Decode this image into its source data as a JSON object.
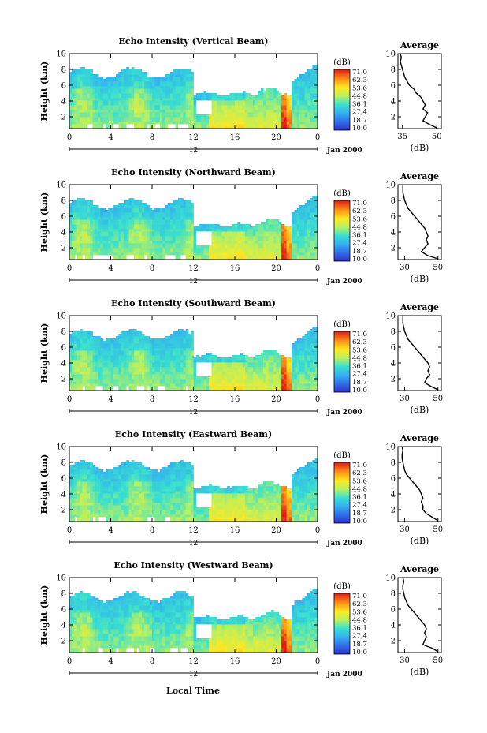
{
  "figure": {
    "xlabel": "Local Time",
    "date_label": "Jan 2000",
    "colorbar_unit": "(dB)",
    "colorbar_ticks": [
      "71.0",
      "62.3",
      "53.6",
      "44.8",
      "36.1",
      "27.4",
      "18.7",
      "10.0"
    ],
    "average_title": "Average",
    "average_xlabel": "(dB)"
  },
  "chart_data": [
    {
      "type": "heatmap",
      "title": "Echo Intensity (Vertical Beam)",
      "ylabel": "Height (km)",
      "x_ticks": [
        "0",
        "4",
        "8",
        "12",
        "16",
        "20",
        "0"
      ],
      "x_mid_label": "12",
      "y_ticks": [
        "2",
        "4",
        "6",
        "8",
        "10"
      ],
      "xlim": [
        0,
        24
      ],
      "ylim": [
        0.5,
        10
      ],
      "colorbar": {
        "label": "(dB)",
        "range": [
          10.0,
          71.0
        ]
      },
      "average_profile": {
        "title": "Average",
        "xlabel": "(dB)",
        "x_ticks": [
          "35",
          "50"
        ],
        "y_ticks": [
          "2",
          "4",
          "6",
          "8",
          "10"
        ],
        "xlim": [
          33,
          52
        ],
        "height_km": [
          0.6,
          1.0,
          1.5,
          2.0,
          2.5,
          3.0,
          3.5,
          4.0,
          4.5,
          5.0,
          5.5,
          6.0,
          6.5,
          7.0,
          7.5,
          8.0,
          8.5,
          9.0,
          9.5,
          10.0
        ],
        "db": [
          50,
          47,
          44,
          45,
          46,
          44,
          45,
          44,
          43,
          41,
          40,
          38,
          37,
          36,
          35.5,
          35,
          34.5,
          34,
          34.5,
          34
        ]
      }
    },
    {
      "type": "heatmap",
      "title": "Echo Intensity (Northward Beam)",
      "ylabel": "Height (km)",
      "x_ticks": [
        "0",
        "4",
        "8",
        "12",
        "16",
        "20",
        "0"
      ],
      "x_mid_label": "12",
      "y_ticks": [
        "2",
        "4",
        "6",
        "8",
        "10"
      ],
      "xlim": [
        0,
        24
      ],
      "ylim": [
        0.5,
        10
      ],
      "colorbar": {
        "label": "(dB)",
        "range": [
          10.0,
          71.0
        ]
      },
      "average_profile": {
        "title": "Average",
        "xlabel": "(dB)",
        "x_ticks": [
          "30",
          "50"
        ],
        "y_ticks": [
          "2",
          "4",
          "6",
          "8",
          "10"
        ],
        "xlim": [
          26,
          52
        ],
        "height_km": [
          0.6,
          1.0,
          1.5,
          2.0,
          2.5,
          3.0,
          3.5,
          4.0,
          4.5,
          5.0,
          5.5,
          6.0,
          6.5,
          7.0,
          7.5,
          8.0,
          8.5,
          9.0,
          9.5,
          10.0
        ],
        "db": [
          50,
          44,
          40,
          42,
          44,
          43,
          44,
          43,
          42,
          40,
          38,
          36,
          34,
          32,
          31,
          30,
          29.5,
          29,
          29,
          29
        ]
      }
    },
    {
      "type": "heatmap",
      "title": "Echo Intensity (Southward Beam)",
      "ylabel": "Height (km)",
      "x_ticks": [
        "0",
        "4",
        "8",
        "12",
        "16",
        "20",
        "0"
      ],
      "x_mid_label": "12",
      "y_ticks": [
        "2",
        "4",
        "6",
        "8",
        "10"
      ],
      "xlim": [
        0,
        24
      ],
      "ylim": [
        0.5,
        10
      ],
      "colorbar": {
        "label": "(dB)",
        "range": [
          10.0,
          71.0
        ]
      },
      "average_profile": {
        "title": "Average",
        "xlabel": "(dB)",
        "x_ticks": [
          "30",
          "50"
        ],
        "y_ticks": [
          "2",
          "4",
          "6",
          "8",
          "10"
        ],
        "xlim": [
          26,
          52
        ],
        "height_km": [
          0.6,
          1.0,
          1.5,
          2.0,
          2.5,
          3.0,
          3.5,
          4.0,
          4.5,
          5.0,
          5.5,
          6.0,
          6.5,
          7.0,
          7.5,
          8.0,
          8.5,
          9.0,
          9.5,
          10.0
        ],
        "db": [
          50,
          46,
          42,
          43,
          45,
          44,
          45,
          44,
          42,
          40,
          38,
          36,
          34,
          32,
          31,
          30,
          29.5,
          29,
          29,
          29
        ]
      }
    },
    {
      "type": "heatmap",
      "title": "Echo Intensity (Eastward Beam)",
      "ylabel": "Height (km)",
      "x_ticks": [
        "0",
        "4",
        "8",
        "12",
        "16",
        "20",
        "0"
      ],
      "x_mid_label": "12",
      "y_ticks": [
        "2",
        "4",
        "6",
        "8",
        "10"
      ],
      "xlim": [
        0,
        24
      ],
      "ylim": [
        0.5,
        10
      ],
      "colorbar": {
        "label": "(dB)",
        "range": [
          10.0,
          71.0
        ]
      },
      "average_profile": {
        "title": "Average",
        "xlabel": "(dB)",
        "x_ticks": [
          "30",
          "50"
        ],
        "y_ticks": [
          "2",
          "4",
          "6",
          "8",
          "10"
        ],
        "xlim": [
          26,
          52
        ],
        "height_km": [
          0.6,
          1.0,
          1.5,
          2.0,
          2.5,
          3.0,
          3.5,
          4.0,
          4.5,
          5.0,
          5.5,
          6.0,
          6.5,
          7.0,
          7.5,
          8.0,
          8.5,
          9.0,
          9.5,
          10.0
        ],
        "db": [
          50,
          47,
          43,
          41,
          41,
          40,
          41,
          40,
          39,
          37,
          35,
          33,
          31,
          30,
          29.5,
          29,
          28.5,
          28.5,
          29,
          28.5
        ]
      }
    },
    {
      "type": "heatmap",
      "title": "Echo Intensity (Westward Beam)",
      "ylabel": "Height (km)",
      "x_ticks": [
        "0",
        "4",
        "8",
        "12",
        "16",
        "20",
        "0"
      ],
      "x_mid_label": "12",
      "y_ticks": [
        "2",
        "4",
        "6",
        "8",
        "10"
      ],
      "xlim": [
        0,
        24
      ],
      "ylim": [
        0.5,
        10
      ],
      "colorbar": {
        "label": "(dB)",
        "range": [
          10.0,
          71.0
        ]
      },
      "average_profile": {
        "title": "Average",
        "xlabel": "(dB)",
        "x_ticks": [
          "30",
          "50"
        ],
        "y_ticks": [
          "2",
          "4",
          "6",
          "8",
          "10"
        ],
        "xlim": [
          26,
          52
        ],
        "height_km": [
          0.6,
          1.0,
          1.5,
          2.0,
          2.5,
          3.0,
          3.5,
          4.0,
          4.5,
          5.0,
          5.5,
          6.0,
          6.5,
          7.0,
          7.5,
          8.0,
          8.5,
          9.0,
          9.5,
          10.0
        ],
        "db": [
          50,
          47,
          41,
          42,
          43,
          42,
          43,
          42,
          40,
          38,
          36,
          34,
          32,
          31,
          30,
          29.5,
          29,
          29,
          29.5,
          29
        ]
      }
    }
  ]
}
